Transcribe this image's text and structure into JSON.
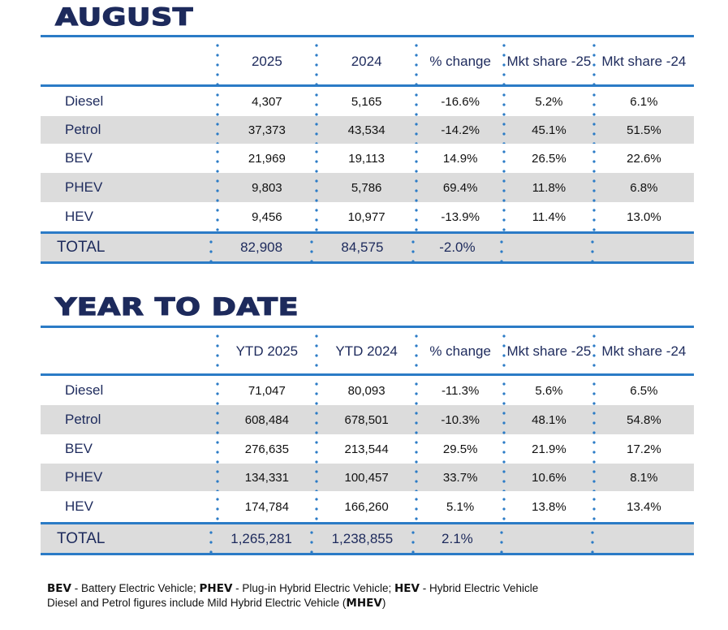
{
  "sections": [
    {
      "title": "AUGUST",
      "headers": [
        "",
        "2025",
        "2024",
        "% change",
        "Mkt share -25",
        "Mkt share -24"
      ],
      "rows": [
        [
          "Diesel",
          "4,307",
          "5,165",
          "-16.6%",
          "5.2%",
          "6.1%"
        ],
        [
          "Petrol",
          "37,373",
          "43,534",
          "-14.2%",
          "45.1%",
          "51.5%"
        ],
        [
          "BEV",
          "21,969",
          "19,113",
          "14.9%",
          "26.5%",
          "22.6%"
        ],
        [
          "PHEV",
          "9,803",
          "5,786",
          "69.4%",
          "11.8%",
          "6.8%"
        ],
        [
          "HEV",
          "9,456",
          "10,977",
          "-13.9%",
          "11.4%",
          "13.0%"
        ]
      ],
      "total": [
        "TOTAL",
        "82,908",
        "84,575",
        "-2.0%",
        "",
        ""
      ]
    },
    {
      "title": "YEAR TO DATE",
      "headers": [
        "",
        "YTD 2025",
        "YTD 2024",
        "% change",
        "Mkt share -25",
        "Mkt share -24"
      ],
      "rows": [
        [
          "Diesel",
          "71,047",
          "80,093",
          "-11.3%",
          "5.6%",
          "6.5%"
        ],
        [
          "Petrol",
          "608,484",
          "678,501",
          "-10.3%",
          "48.1%",
          "54.8%"
        ],
        [
          "BEV",
          "276,635",
          "213,544",
          "29.5%",
          "21.9%",
          "17.2%"
        ],
        [
          "PHEV",
          "134,331",
          "100,457",
          "33.7%",
          "10.6%",
          "8.1%"
        ],
        [
          "HEV",
          "174,784",
          "166,260",
          "5.1%",
          "13.8%",
          "13.4%"
        ]
      ],
      "total": [
        "TOTAL",
        "1,265,281",
        "1,238,855",
        "2.1%",
        "",
        ""
      ]
    }
  ],
  "footnote": {
    "bev": "BEV",
    "bev_text": " - Battery Electric Vehicle; ",
    "phev": "PHEV",
    "phev_text": " - Plug-in Hybrid Electric Vehicle; ",
    "hev": "HEV",
    "hev_text": " - Hybrid Electric Vehicle",
    "line2": "Diesel and Petrol figures include Mild Hybrid Electric Vehicle (",
    "mhev": "MHEV",
    "close": ")"
  }
}
